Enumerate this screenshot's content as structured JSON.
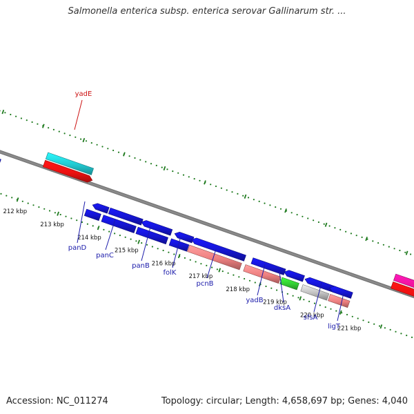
{
  "title": "Salmonella enterica subsp. enterica serovar Gallinarum str. ...",
  "footer": {
    "accession": "Accession: NC_011274",
    "summary": "Topology: circular; Length: 4,658,697 bp; Genes: 4,040"
  },
  "colors": {
    "backbone": "#8a8a8a",
    "dots": "#1e7a1e",
    "label_blue": "#1a1aaa",
    "label_red": "#cc1111",
    "cds": "#1515d0",
    "gene_red": "#ee1111",
    "gene_cyan": "#22c8d0",
    "gene_pink": "#ee8080",
    "gene_green": "#33cc33",
    "gene_gray": "#c0c0c0",
    "gene_magenta": "#ee1499"
  },
  "scale_ticks": [
    "212 kbp",
    "213 kbp",
    "214 kbp",
    "215 kbp",
    "216 kbp",
    "217 kbp",
    "218 kbp",
    "219 kbp",
    "220 kbp",
    "221 kbp"
  ],
  "gene_labels": [
    {
      "name": "yadE",
      "color": "red"
    },
    {
      "name": "panD",
      "color": "blue"
    },
    {
      "name": "panC",
      "color": "blue"
    },
    {
      "name": "panB",
      "color": "blue"
    },
    {
      "name": "folK",
      "color": "blue"
    },
    {
      "name": "pcnB",
      "color": "blue"
    },
    {
      "name": "yadB",
      "color": "blue"
    },
    {
      "name": "dksA",
      "color": "blue"
    },
    {
      "name": "sfsA",
      "color": "blue"
    },
    {
      "name": "ligT",
      "color": "blue"
    }
  ]
}
